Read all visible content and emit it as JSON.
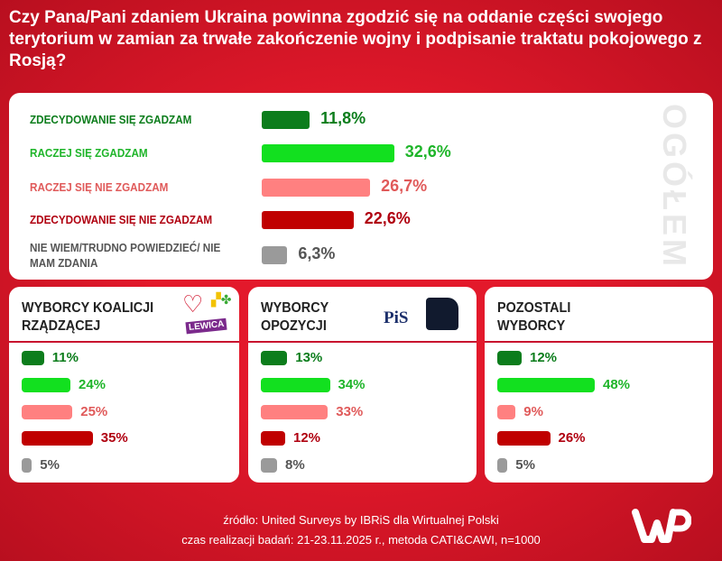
{
  "title": "Czy Pana/Pani zdaniem Ukraina powinna zgodzić się na oddanie części swojego terytorium w zamian za trwałe zakończenie wojny i podpisanie traktatu pokojowego z Rosją?",
  "chart_data": {
    "type": "bar",
    "orientation": "horizontal",
    "categories": [
      "ZDECYDOWANIE SIĘ ZGADZAM",
      "RACZEJ SIĘ ZGADZAM",
      "RACZEJ SIĘ NIE ZGADZAM",
      "ZDECYDOWANIE SIĘ NIE ZGADZAM",
      "NIE WIEM/TRUDNO POWIEDZIEĆ/ NIE MAM ZDANIA"
    ],
    "colors": [
      "#0c7d1c",
      "#12e01f",
      "#ff8080",
      "#c00000",
      "#9a9a9a"
    ],
    "text_colors": [
      "#0c7d1c",
      "#1fb52a",
      "#e05a5a",
      "#b00010",
      "#555555"
    ],
    "overall": {
      "name": "OGÓŁEM",
      "values": [
        11.8,
        32.6,
        26.7,
        22.6,
        6.3
      ],
      "labels": [
        "11,8%",
        "32,6%",
        "26,7%",
        "22,6%",
        "6,3%"
      ]
    },
    "groups": [
      {
        "name": "WYBORCY KOALICJI RZĄDZĄCEJ",
        "values": [
          11,
          24,
          25,
          35,
          5
        ],
        "labels": [
          "11%",
          "24%",
          "25%",
          "35%",
          "5%"
        ]
      },
      {
        "name": "WYBORCY OPOZYCJI",
        "values": [
          13,
          34,
          33,
          12,
          8
        ],
        "labels": [
          "13%",
          "34%",
          "33%",
          "12%",
          "8%"
        ]
      },
      {
        "name": "POZOSTALI WYBORCY",
        "values": [
          12,
          48,
          9,
          26,
          5
        ],
        "labels": [
          "12%",
          "48%",
          "9%",
          "26%",
          "5%"
        ]
      }
    ],
    "unit": "%"
  },
  "logos": {
    "lewica": "LEWICA",
    "pis": "PiS",
    "konfederacja": "KONFEDERACJA",
    "wp": "WP"
  },
  "footer": {
    "source": "źródło: United Surveys by IBRiS dla Wirtualnej Polski",
    "method": "czas realizacji badań: 21-23.11.2025 r., metoda CATI&CAWI, n=1000"
  }
}
